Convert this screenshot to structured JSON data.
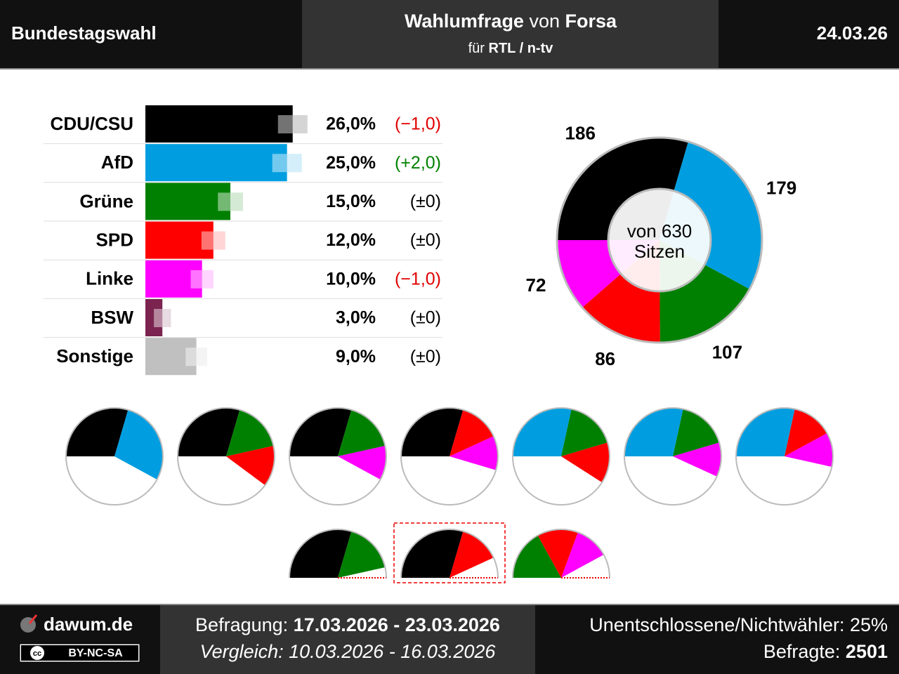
{
  "header": {
    "left": "Bundestagswahl",
    "title_bold": "Wahlumfrage",
    "title_mid": "von",
    "title_institute": "Forsa",
    "sub_pre": "für",
    "sub_client": "RTL / n-tv",
    "date": "24.03.26"
  },
  "chart_data": [
    {
      "type": "bar",
      "categories": [
        "CDU/CSU",
        "AfD",
        "Grüne",
        "SPD",
        "Linke",
        "BSW",
        "Sonstige"
      ],
      "values": [
        26,
        25,
        15,
        12,
        10,
        3,
        9
      ],
      "value_labels": [
        "26,0%",
        "25,0%",
        "15,0%",
        "12,0%",
        "10,0%",
        "3,0%",
        "9,0%"
      ],
      "errors": [
        2.6,
        2.6,
        2.2,
        2.1,
        2.0,
        1.5,
        1.9
      ],
      "changes": [
        -1,
        2,
        0,
        0,
        -1,
        0,
        0
      ],
      "change_labels": [
        "(−1,0)",
        "(+2,0)",
        "(±0)",
        "(±0)",
        "(−1,0)",
        "(±0)",
        "(±0)"
      ],
      "colors": [
        "#000000",
        "#009ee0",
        "#008000",
        "#ff0000",
        "#ff00ff",
        "#7b2450",
        "#c0c0c0"
      ],
      "xlim": [
        0,
        30
      ]
    },
    {
      "type": "donut",
      "categories": [
        "CDU/CSU",
        "AfD",
        "Grüne",
        "SPD",
        "Linke"
      ],
      "values": [
        186,
        179,
        107,
        86,
        72
      ],
      "colors": [
        "#000000",
        "#009ee0",
        "#008000",
        "#ff0000",
        "#ff00ff"
      ],
      "center_label": [
        "von 630",
        "Sitzen"
      ]
    },
    {
      "type": "coalition",
      "total": 630,
      "items": [
        {
          "values": [
            186,
            179
          ],
          "colors": [
            "#000000",
            "#009ee0"
          ]
        },
        {
          "values": [
            186,
            107,
            86
          ],
          "colors": [
            "#000000",
            "#008000",
            "#ff0000"
          ]
        },
        {
          "values": [
            186,
            107,
            72
          ],
          "colors": [
            "#000000",
            "#008000",
            "#ff00ff"
          ]
        },
        {
          "values": [
            186,
            86,
            72
          ],
          "colors": [
            "#000000",
            "#ff0000",
            "#ff00ff"
          ]
        },
        {
          "values": [
            179,
            107,
            86
          ],
          "colors": [
            "#009ee0",
            "#008000",
            "#ff0000"
          ]
        },
        {
          "values": [
            179,
            107,
            72
          ],
          "colors": [
            "#009ee0",
            "#008000",
            "#ff00ff"
          ]
        },
        {
          "values": [
            179,
            86,
            72
          ],
          "colors": [
            "#009ee0",
            "#ff0000",
            "#ff00ff"
          ]
        },
        {
          "values": [
            186,
            107
          ],
          "colors": [
            "#000000",
            "#008000"
          ]
        },
        {
          "values": [
            186,
            86
          ],
          "colors": [
            "#000000",
            "#ff0000"
          ],
          "current": true
        },
        {
          "values": [
            107,
            86,
            72
          ],
          "colors": [
            "#008000",
            "#ff0000",
            "#ff00ff"
          ]
        }
      ]
    }
  ],
  "footer": {
    "site": "dawum.de",
    "license": "BY-NC-SA",
    "cc": "cc",
    "survey_pre": "Befragung:",
    "survey_dates": "17.03.2026 - 23.03.2026",
    "compare": "Vergleich: 10.03.2026 - 16.03.2026",
    "undecided": "Unentschlossene/Nichtwähler: 25%",
    "respondents_pre": "Befragte:",
    "respondents": "2501"
  }
}
